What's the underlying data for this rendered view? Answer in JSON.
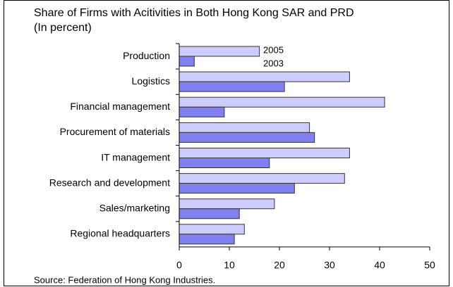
{
  "chart_data": {
    "type": "hbar",
    "title": "Share of Firms with Acitivities in Both Hong Kong SAR and PRD",
    "subtitle": "(In percent)",
    "source": "Source: Federation of Hong Kong Industries.",
    "categories": [
      "Production",
      "Logistics",
      "Financial management",
      "Procurement of materials",
      "IT management",
      "Research and development",
      "Sales/marketing",
      "Regional headquarters"
    ],
    "series": [
      {
        "name": "2005",
        "color": "#ccccff",
        "values": [
          16,
          34,
          41,
          26,
          34,
          33,
          19,
          13
        ]
      },
      {
        "name": "2003",
        "color": "#8080f0",
        "values": [
          3,
          21,
          9,
          27,
          18,
          23,
          12,
          11
        ]
      }
    ],
    "xlim": [
      0,
      50
    ],
    "xticks": [
      0,
      10,
      20,
      30,
      40,
      50
    ]
  }
}
